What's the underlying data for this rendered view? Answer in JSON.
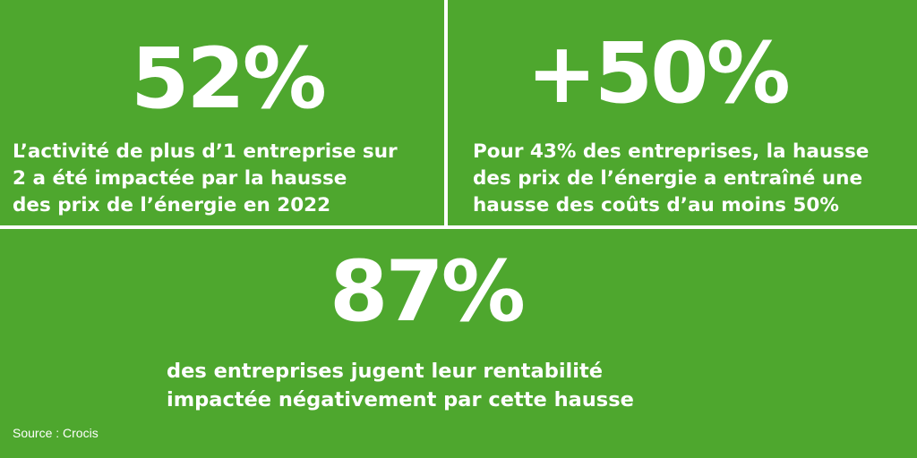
{
  "stats": [
    {
      "value": "52%",
      "lines": [
        "L’activité de plus d’1 entreprise sur",
        "2 a été impactée par la hausse",
        "des prix de l’énergie en 2022"
      ]
    },
    {
      "value": "+50%",
      "lines": [
        "Pour 43% des entreprises, la hausse",
        "des prix de l’énergie a entraîné une",
        "hausse des coûts d’au moins 50%"
      ]
    },
    {
      "value": "87%",
      "lines": [
        "des entreprises jugent leur rentabilité",
        "impactée négativement par cette hausse"
      ]
    }
  ],
  "source": "Source : Crocis",
  "colors": {
    "background": "#4ea72e",
    "text": "#ffffff"
  }
}
